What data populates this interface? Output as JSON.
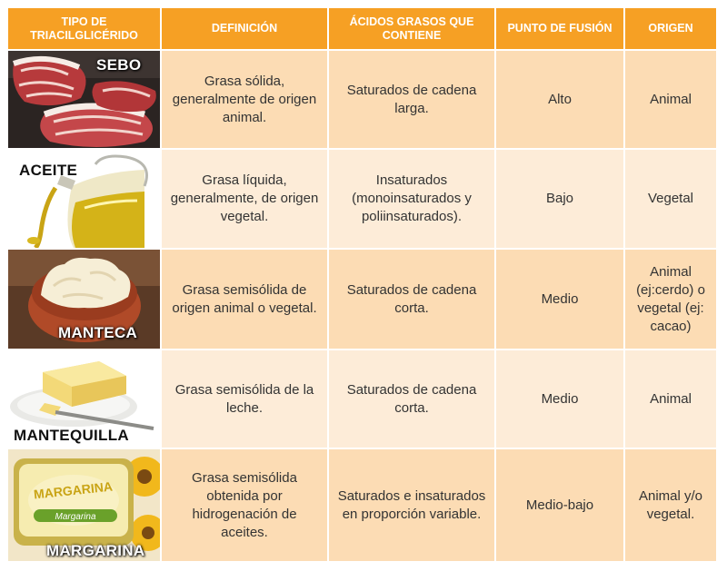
{
  "headers": [
    "TIPO DE TRIACILGLICÉRIDO",
    "DEFINICIÓN",
    "ÁCIDOS GRASOS QUE CONTIENE",
    "PUNTO DE FUSIÓN",
    "ORIGEN"
  ],
  "rows": [
    {
      "tipo": "SEBO",
      "definicion": "Grasa sólida, generalmente de origen animal.",
      "acidos": "Saturados de cadena larga.",
      "punto": "Alto",
      "origen": "Animal"
    },
    {
      "tipo": "ACEITE",
      "definicion": "Grasa líquida, generalmente, de origen vegetal.",
      "acidos": "Insaturados (monoinsaturados y poliinsaturados).",
      "punto": "Bajo",
      "origen": "Vegetal"
    },
    {
      "tipo": "MANTECA",
      "definicion": "Grasa semisólida de origen animal o vegetal.",
      "acidos": "Saturados de cadena corta.",
      "punto": "Medio",
      "origen": "Animal (ej:cerdo) o vegetal (ej: cacao)"
    },
    {
      "tipo": "MANTEQUILLA",
      "definicion": "Grasa semisólida de la leche.",
      "acidos": "Saturados de cadena corta.",
      "punto": "Medio",
      "origen": "Animal"
    },
    {
      "tipo": "MARGARINA",
      "definicion": "Grasa semisólida obtenida por hidrogenación de aceites.",
      "acidos": "Saturados e insaturados en proporción variable.",
      "punto": "Medio-bajo",
      "origen": "Animal y/o vegetal."
    }
  ],
  "tub_brand": "MARGARINA",
  "tub_subbrand": "Margarina",
  "colors": {
    "header_bg": "#f6a024",
    "row_dark": "#fcdcb4",
    "row_light": "#fdecd8"
  }
}
